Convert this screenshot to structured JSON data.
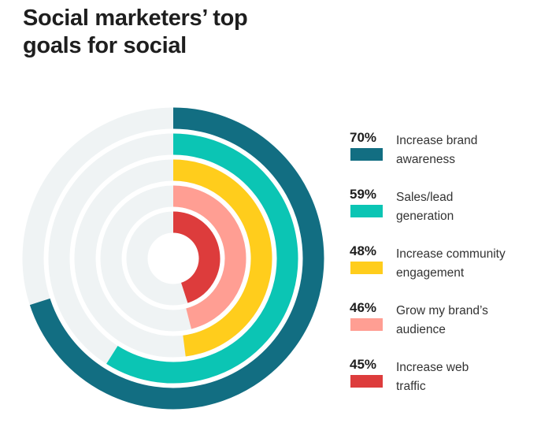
{
  "title": "Social marketers’ top goals for social",
  "chart_data": {
    "type": "radial-bar",
    "title": "Social marketers’ top goals for social",
    "unit": "%",
    "max": 100,
    "track_color": "#eff3f4",
    "legend_position": "right",
    "series": [
      {
        "label_line1": "Increase brand",
        "label_line2": "awareness",
        "value": 70,
        "display": "70%",
        "color": "#126e82"
      },
      {
        "label_line1": "Sales/lead",
        "label_line2": "generation",
        "value": 59,
        "display": "59%",
        "color": "#0bc5b4"
      },
      {
        "label_line1": "Increase community",
        "label_line2": "engagement",
        "value": 48,
        "display": "48%",
        "color": "#ffcd1c"
      },
      {
        "label_line1": "Grow my brand’s",
        "label_line2": "audience",
        "value": 46,
        "display": "46%",
        "color": "#ff9e93"
      },
      {
        "label_line1": "Increase web",
        "label_line2": "traffic",
        "value": 45,
        "display": "45%",
        "color": "#dd3c3c"
      }
    ]
  }
}
